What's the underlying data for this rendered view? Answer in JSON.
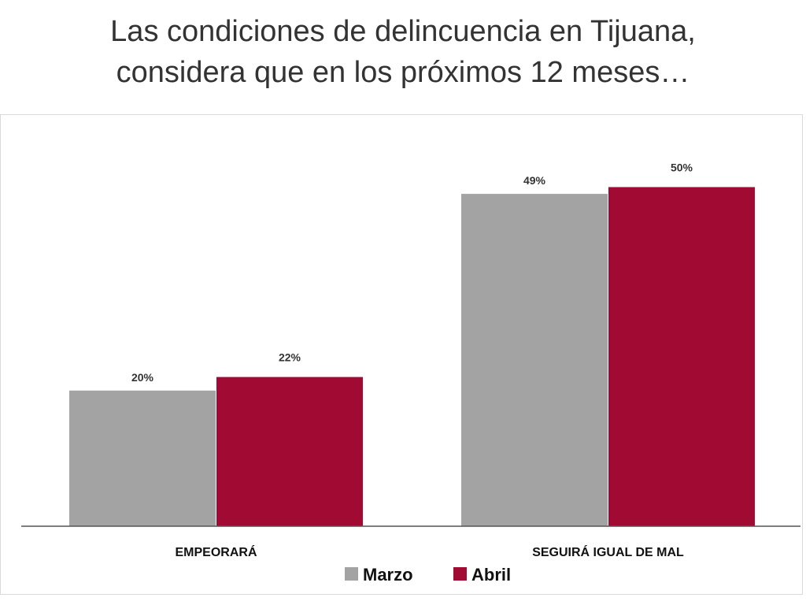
{
  "title": {
    "line1": "Las condiciones de delincuencia en Tijuana,",
    "line2": "considera que en los próximos 12 meses…"
  },
  "chart_data": {
    "type": "bar",
    "categories": [
      "EMPEORARÁ",
      "SEGUIRÁ IGUAL DE MAL"
    ],
    "series": [
      {
        "name": "Marzo",
        "values": [
          20,
          49
        ],
        "labels": [
          "20%",
          "49%"
        ],
        "color": "#a3a3a3"
      },
      {
        "name": "Abril",
        "values": [
          22,
          50
        ],
        "labels": [
          "22%",
          "50%"
        ],
        "color": "#a10a32"
      }
    ],
    "ylim": [
      0,
      59
    ],
    "grid": false,
    "legend": "bottom"
  }
}
